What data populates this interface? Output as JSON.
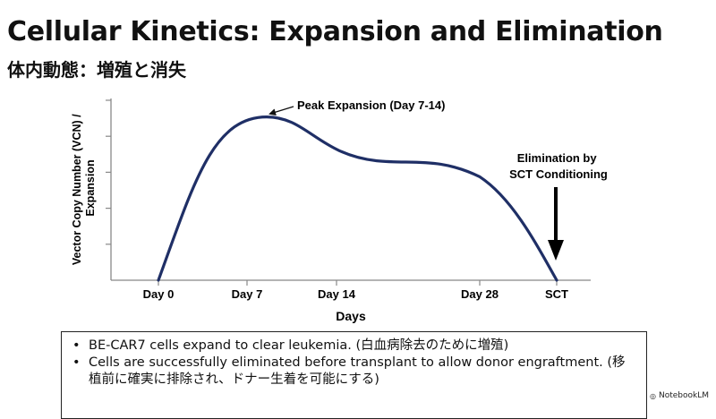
{
  "slide": {
    "title": "Cellular Kinetics: Expansion and Elimination",
    "subtitle": "体内動態：増殖と消失"
  },
  "chart_data": {
    "type": "line",
    "xlabel": "Days",
    "ylabel": "Vector Copy Number (VCN) / Expansion",
    "ylabel_lines": [
      "Vector Copy Number (VCN) /",
      "Expansion"
    ],
    "x_ticks": [
      "Day 0",
      "Day 7",
      "Day 14",
      "Day 28",
      "SCT"
    ],
    "y_ticks_labeled": false,
    "series": [
      {
        "x": [
          "Day 0",
          "Day 7",
          "Day 14",
          "Day 28",
          "SCT"
        ],
        "y": [
          0,
          0.82,
          0.62,
          0.58,
          0
        ]
      }
    ],
    "annotations": [
      {
        "text": "Peak Expansion (Day 7-14)",
        "points_to": "curve peak near Day 7"
      },
      {
        "text_lines": [
          "Elimination by",
          "SCT Conditioning"
        ],
        "points_to": "SCT"
      }
    ],
    "grid": false,
    "legend": "none"
  },
  "notes": {
    "items": [
      {
        "text": "BE-CAR7 cells expand to clear leukemia. (白血病除去のために増殖)"
      },
      {
        "text": "Cells are successfully eliminated before transplant to allow donor engraftment. (移植前に確実に排除され、ドナー生着を可能にする)"
      }
    ],
    "bullet": "•"
  },
  "watermark": {
    "label": "NotebookLM",
    "icon": "notebooklm-icon"
  },
  "colors": {
    "curve": "#1f2f66",
    "axis": "#888888",
    "text": "#111111"
  }
}
